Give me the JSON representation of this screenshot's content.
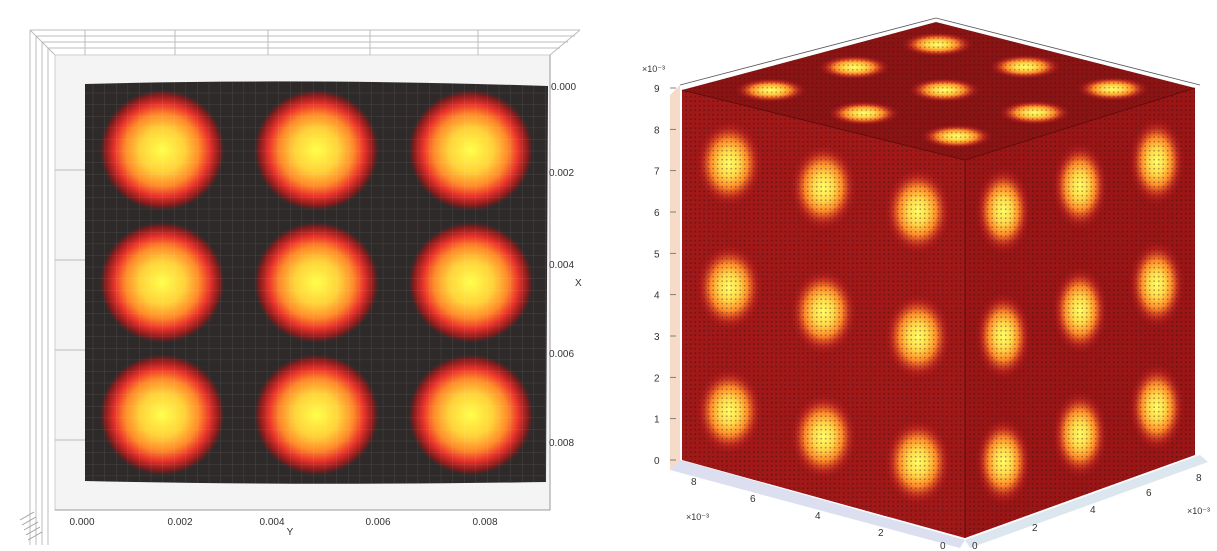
{
  "chart_data": [
    {
      "type": "heatmap",
      "title": "",
      "xlabel": "Y",
      "ylabel": "X",
      "xlim": [
        0,
        0.009
      ],
      "ylim": [
        0,
        0.009
      ],
      "x_ticks": [
        "0.000",
        "0.002",
        "0.004",
        "0.006",
        "0.008"
      ],
      "y_ticks": [
        "0.000",
        "0.002",
        "0.004",
        "0.006",
        "0.008"
      ],
      "grid": true,
      "colormap": [
        "#2e2a2a",
        "#8b1a1a",
        "#e8312a",
        "#ff8a2a",
        "#ffd23a",
        "#ffff4a"
      ],
      "peaks_grid": {
        "rows": 3,
        "cols": 3,
        "centers_x": [
          0.0015,
          0.0045,
          0.0075
        ],
        "centers_y": [
          0.0015,
          0.0045,
          0.0075
        ]
      }
    },
    {
      "type": "heatmap",
      "title": "",
      "xlabel": "",
      "ylabel": "",
      "zlabel": "",
      "view": "3d-isometric",
      "z_ticks": [
        "0",
        "1",
        "2",
        "3",
        "4",
        "5",
        "6",
        "7",
        "8",
        "9"
      ],
      "z_multiplier": "×10⁻³",
      "x_ticks": [
        "8",
        "6",
        "4",
        "2",
        "0"
      ],
      "x_multiplier": "×10⁻³",
      "y_ticks": [
        "0",
        "2",
        "4",
        "6",
        "8"
      ],
      "y_multiplier": "×10⁻³",
      "zlim": [
        0,
        0.009
      ],
      "colormap": [
        "#6a0a0a",
        "#b21e1e",
        "#e8402a",
        "#ffb22a",
        "#ffff6a"
      ],
      "peaks_per_face": {
        "rows": 3,
        "cols": 3
      }
    }
  ]
}
